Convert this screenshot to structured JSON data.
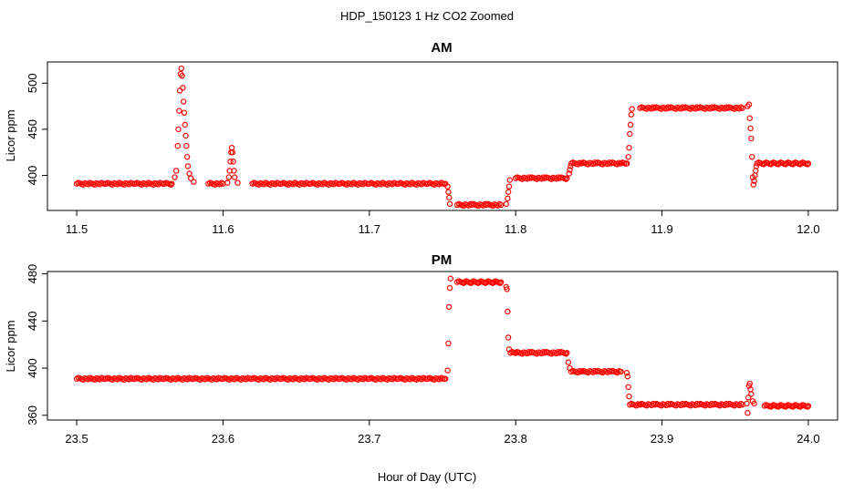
{
  "figure": {
    "title": "HDP_150123  1 Hz CO2 Zoomed",
    "xlabel": "Hour of Day (UTC)"
  },
  "colors": {
    "points": "#ff0000",
    "axes": "#000000",
    "background": "#ffffff"
  },
  "chart_data": [
    {
      "type": "scatter",
      "title": "AM",
      "xlabel": "Hour of Day (UTC)",
      "ylabel": "Licor ppm",
      "xlim": [
        11.48,
        12.02
      ],
      "ylim": [
        362,
        523
      ],
      "xticks": [
        "11.5",
        "11.6",
        "11.7",
        "11.8",
        "11.9",
        "12.0"
      ],
      "yticks": [
        "400",
        "450",
        "500"
      ],
      "grid": false,
      "series": [
        {
          "marker": "open-circle",
          "points": [
            [
              11.5,
              391
            ],
            [
              11.52,
              391
            ],
            [
              11.54,
              391
            ],
            [
              11.56,
              391
            ],
            [
              11.565,
              391
            ],
            [
              11.567,
              398
            ],
            [
              11.568,
              405
            ],
            [
              11.569,
              432
            ],
            [
              11.5695,
              450
            ],
            [
              11.57,
              470
            ],
            [
              11.5705,
              492
            ],
            [
              11.571,
              510
            ],
            [
              11.5715,
              516
            ],
            [
              11.572,
              508
            ],
            [
              11.5725,
              495
            ],
            [
              11.573,
              480
            ],
            [
              11.5735,
              468
            ],
            [
              11.574,
              455
            ],
            [
              11.5745,
              443
            ],
            [
              11.575,
              432
            ],
            [
              11.5755,
              420
            ],
            [
              11.576,
              410
            ],
            [
              11.577,
              402
            ],
            [
              11.578,
              397
            ],
            [
              11.58,
              393
            ],
            [
              11.59,
              391
            ],
            [
              11.6,
              391
            ],
            [
              11.603,
              392
            ],
            [
              11.604,
              398
            ],
            [
              11.6045,
              405
            ],
            [
              11.605,
              415
            ],
            [
              11.6055,
              425
            ],
            [
              11.606,
              430
            ],
            [
              11.6065,
              425
            ],
            [
              11.607,
              415
            ],
            [
              11.6075,
              405
            ],
            [
              11.608,
              398
            ],
            [
              11.61,
              392
            ],
            [
              11.62,
              391
            ],
            [
              11.64,
              391
            ],
            [
              11.66,
              391
            ],
            [
              11.68,
              391
            ],
            [
              11.7,
              391
            ],
            [
              11.72,
              391
            ],
            [
              11.74,
              391
            ],
            [
              11.752,
              391
            ],
            [
              11.7535,
              388
            ],
            [
              11.754,
              382
            ],
            [
              11.7545,
              376
            ],
            [
              11.755,
              369
            ],
            [
              11.76,
              368
            ],
            [
              11.77,
              368
            ],
            [
              11.78,
              368
            ],
            [
              11.79,
              368
            ],
            [
              11.7935,
              369
            ],
            [
              11.7945,
              375
            ],
            [
              11.795,
              382
            ],
            [
              11.7955,
              388
            ],
            [
              11.796,
              395
            ],
            [
              11.8,
              397
            ],
            [
              11.81,
              397
            ],
            [
              11.82,
              397
            ],
            [
              11.83,
              397
            ],
            [
              11.835,
              397
            ],
            [
              11.8365,
              402
            ],
            [
              11.837,
              406
            ],
            [
              11.8375,
              410
            ],
            [
              11.838,
              413
            ],
            [
              11.845,
              413
            ],
            [
              11.855,
              413
            ],
            [
              11.865,
              413
            ],
            [
              11.872,
              413
            ],
            [
              11.876,
              413
            ],
            [
              11.877,
              420
            ],
            [
              11.8775,
              430
            ],
            [
              11.878,
              445
            ],
            [
              11.8785,
              455
            ],
            [
              11.879,
              466
            ],
            [
              11.8795,
              472
            ],
            [
              11.885,
              473
            ],
            [
              11.895,
              473
            ],
            [
              11.905,
              473
            ],
            [
              11.915,
              473
            ],
            [
              11.925,
              473
            ],
            [
              11.935,
              473
            ],
            [
              11.945,
              473
            ],
            [
              11.955,
              473
            ],
            [
              11.9585,
              475
            ],
            [
              11.9595,
              477
            ],
            [
              11.96,
              462
            ],
            [
              11.9605,
              451
            ],
            [
              11.961,
              440
            ],
            [
              11.9615,
              420
            ],
            [
              11.962,
              398
            ],
            [
              11.9625,
              390
            ],
            [
              11.963,
              394
            ],
            [
              11.9635,
              400
            ],
            [
              11.964,
              405
            ],
            [
              11.9645,
              410
            ],
            [
              11.965,
              413
            ],
            [
              11.97,
              413
            ],
            [
              11.975,
              413
            ],
            [
              11.98,
              413
            ],
            [
              11.985,
              413
            ],
            [
              11.99,
              413
            ],
            [
              11.995,
              413
            ],
            [
              12.0,
              413
            ]
          ]
        }
      ]
    },
    {
      "type": "scatter",
      "title": "PM",
      "xlabel": "Hour of Day (UTC)",
      "ylabel": "Licor ppm",
      "xlim": [
        23.48,
        24.02
      ],
      "ylim": [
        356,
        482
      ],
      "xticks": [
        "23.5",
        "23.6",
        "23.7",
        "23.8",
        "23.9",
        "24.0"
      ],
      "yticks": [
        "360",
        "400",
        "440",
        "480"
      ],
      "grid": false,
      "series": [
        {
          "marker": "open-circle",
          "points": [
            [
              23.5,
              391
            ],
            [
              23.52,
              391
            ],
            [
              23.54,
              391
            ],
            [
              23.56,
              391
            ],
            [
              23.58,
              391
            ],
            [
              23.6,
              391
            ],
            [
              23.62,
              391
            ],
            [
              23.64,
              391
            ],
            [
              23.66,
              391
            ],
            [
              23.68,
              391
            ],
            [
              23.7,
              391
            ],
            [
              23.72,
              391
            ],
            [
              23.74,
              391
            ],
            [
              23.752,
              391
            ],
            [
              23.7535,
              398
            ],
            [
              23.754,
              421
            ],
            [
              23.7545,
              452
            ],
            [
              23.755,
              468
            ],
            [
              23.7555,
              476
            ],
            [
              23.76,
              473
            ],
            [
              23.765,
              473
            ],
            [
              23.77,
              473
            ],
            [
              23.775,
              473
            ],
            [
              23.78,
              473
            ],
            [
              23.785,
              473
            ],
            [
              23.79,
              473
            ],
            [
              23.7935,
              469
            ],
            [
              23.794,
              467
            ],
            [
              23.7945,
              448
            ],
            [
              23.795,
              426
            ],
            [
              23.7955,
              416
            ],
            [
              23.7965,
              413
            ],
            [
              23.8,
              413
            ],
            [
              23.81,
              413
            ],
            [
              23.82,
              413
            ],
            [
              23.83,
              413
            ],
            [
              23.835,
              413
            ],
            [
              23.836,
              405
            ],
            [
              23.837,
              400
            ],
            [
              23.838,
              397
            ],
            [
              23.845,
              397
            ],
            [
              23.855,
              397
            ],
            [
              23.865,
              397
            ],
            [
              23.872,
              397
            ],
            [
              23.876,
              396
            ],
            [
              23.8765,
              393
            ],
            [
              23.877,
              384
            ],
            [
              23.8775,
              376
            ],
            [
              23.878,
              369
            ],
            [
              23.885,
              369
            ],
            [
              23.895,
              369
            ],
            [
              23.905,
              369
            ],
            [
              23.915,
              369
            ],
            [
              23.925,
              369
            ],
            [
              23.935,
              369
            ],
            [
              23.945,
              369
            ],
            [
              23.955,
              369
            ],
            [
              23.958,
              370
            ],
            [
              23.9585,
              362
            ],
            [
              23.959,
              375
            ],
            [
              23.9595,
              385
            ],
            [
              23.96,
              387
            ],
            [
              23.9605,
              382
            ],
            [
              23.961,
              378
            ],
            [
              23.962,
              372
            ],
            [
              23.963,
              370
            ],
            [
              23.97,
              368
            ],
            [
              23.975,
              368
            ],
            [
              23.98,
              368
            ],
            [
              23.985,
              368
            ],
            [
              23.99,
              368
            ],
            [
              23.995,
              368
            ],
            [
              24.0,
              368
            ]
          ]
        }
      ]
    }
  ]
}
